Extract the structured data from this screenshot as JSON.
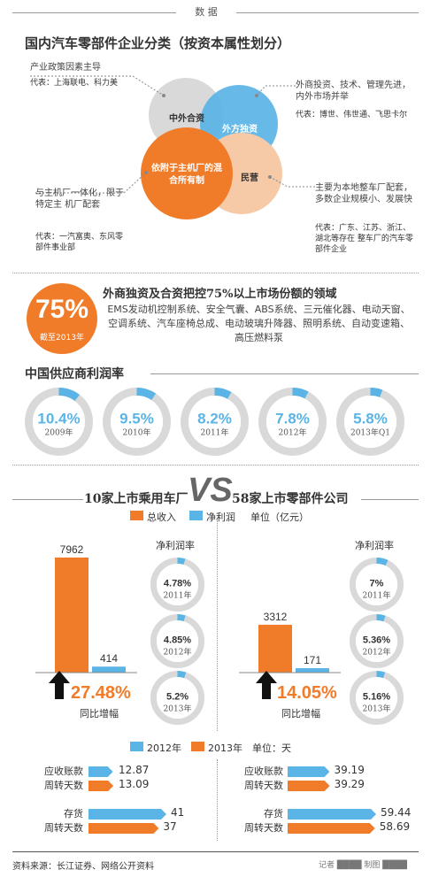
{
  "header": {
    "label": "数 据"
  },
  "section1": {
    "title": "国内汽车零部件企业分类（按资本属性划分）",
    "left_top": {
      "desc": "产业政策因素主导",
      "rep": "代表：上海联电、科力美"
    },
    "right_top": {
      "desc": "外商投资、技术、管理先进，内外市场并举",
      "rep": "代表：博世、伟世通、飞思卡尔"
    },
    "left_bottom": {
      "desc": "与主机厂一体化，限于特定主 机厂配套",
      "rep": "代表：一汽富奥、东风零部件事业部"
    },
    "right_bottom": {
      "desc": "主要为本地整车厂配套，多数企业规模小、发展快",
      "rep": "代表：广东、江苏、浙江、湖北等存在 整车厂的汽车零部件企业"
    },
    "circles": {
      "jv": "中外合资",
      "foreign": "外方独资",
      "mixed": "依附于主机厂的混合所有制",
      "private": "民营"
    },
    "colors": {
      "gray": "#d9d9d9",
      "blue": "#5ab4e5",
      "orange": "#f07c2a",
      "peach": "#f6c9a7"
    }
  },
  "section2": {
    "big_value": "75%",
    "big_sub": "截至2013年",
    "title": "外商独资及合资把控75%以上市场份额的领域",
    "body": "EMS发动机控制系统、安全气囊、ABS系统、三元催化器、电动天窗、空调系统、汽车座椅总成、电动玻璃升降器、照明系统、自动变速箱、高压燃料泵"
  },
  "section3": {
    "title": "中国供应商利润率",
    "items": [
      {
        "value": "10.4%",
        "year": "2009年",
        "pct": 10.4
      },
      {
        "value": "9.5%",
        "year": "2010年",
        "pct": 9.5
      },
      {
        "value": "8.2%",
        "year": "2011年",
        "pct": 8.2
      },
      {
        "value": "7.8%",
        "year": "2012年",
        "pct": 7.8
      },
      {
        "value": "5.8%",
        "year": "2013年Q1",
        "pct": 5.8
      }
    ]
  },
  "section4": {
    "left_title": "10家上市乘用车厂",
    "vs": "VS",
    "right_title": "58家上市零部件公司",
    "legend": {
      "revenue": "总收入",
      "profit": "净利润",
      "unit": "单位（亿元）"
    },
    "left": {
      "revenue": "7962",
      "profit": "414",
      "growth": "27.48%",
      "growth_label": "同比增幅",
      "revenue_num": 7962,
      "profit_num": 414,
      "margin_title": "净利润率",
      "margins": [
        {
          "value": "4.78%",
          "year": "2011年",
          "pct": 4.78
        },
        {
          "value": "4.85%",
          "year": "2012年",
          "pct": 4.85
        },
        {
          "value": "5.2%",
          "year": "2013年",
          "pct": 5.2
        }
      ]
    },
    "right": {
      "revenue": "3312",
      "profit": "171",
      "growth": "14.05%",
      "growth_label": "同比增幅",
      "revenue_num": 3312,
      "profit_num": 171,
      "margin_title": "净利润率",
      "margins": [
        {
          "value": "7%",
          "year": "2011年",
          "pct": 7
        },
        {
          "value": "5.36%",
          "year": "2012年",
          "pct": 5.36
        },
        {
          "value": "5.16%",
          "year": "2013年",
          "pct": 5.16
        }
      ]
    }
  },
  "section5": {
    "legend": {
      "y2012": "2012年",
      "y2013": "2013年",
      "unit": "单位：天"
    },
    "left": {
      "ar_label1": "应收账款",
      "ar_label2": "周转天数",
      "ar_2012": "12.87",
      "ar_2013": "13.09",
      "inv_label1": "存货",
      "inv_label2": "周转天数",
      "inv_2012": "41",
      "inv_2013": "37"
    },
    "right": {
      "ar_label1": "应收账款",
      "ar_label2": "周转天数",
      "ar_2012": "39.19",
      "ar_2013": "39.29",
      "inv_label1": "存货",
      "inv_label2": "周转天数",
      "inv_2012": "59.44",
      "inv_2013": "58.69"
    }
  },
  "footer": {
    "source": "资料来源：长江证券、网络公开资料",
    "credit": "记者 ████ 制图 ████"
  }
}
